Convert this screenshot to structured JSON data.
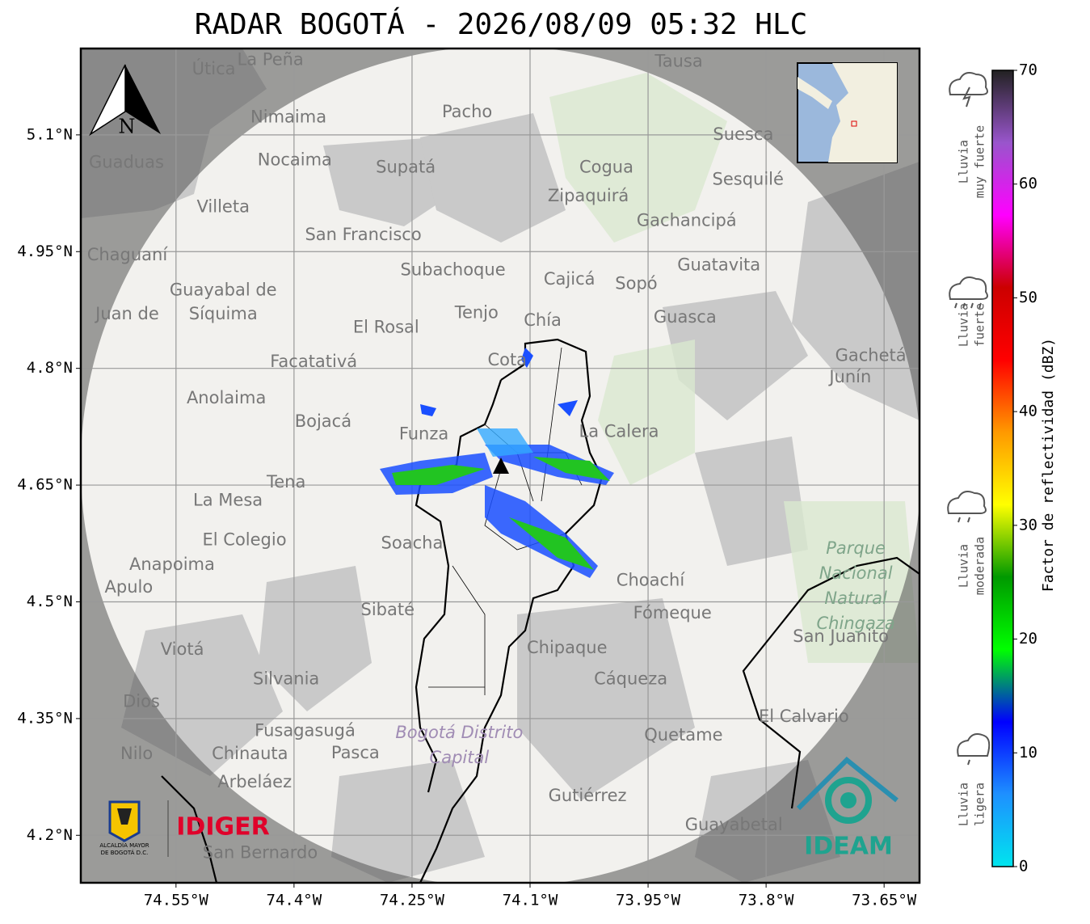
{
  "title": "RADAR BOGOTÁ - 2026/08/09 05:32 HLC",
  "map": {
    "xlim": [
      -74.671,
      -73.605
    ],
    "ylim": [
      4.139,
      5.211
    ],
    "lon_ticks": [
      {
        "value": -74.55,
        "label": "74.55°W"
      },
      {
        "value": -74.4,
        "label": "74.4°W"
      },
      {
        "value": -74.25,
        "label": "74.25°W"
      },
      {
        "value": -74.1,
        "label": "74.1°W"
      },
      {
        "value": -73.95,
        "label": "73.95°W"
      },
      {
        "value": -73.8,
        "label": "73.8°W"
      },
      {
        "value": -73.65,
        "label": "73.65°W"
      }
    ],
    "lat_ticks": [
      {
        "value": 5.1,
        "label": "5.1°N"
      },
      {
        "value": 4.95,
        "label": "4.95°N"
      },
      {
        "value": 4.8,
        "label": "4.8°N"
      },
      {
        "value": 4.65,
        "label": "4.65°N"
      },
      {
        "value": 4.5,
        "label": "4.5°N"
      },
      {
        "value": 4.35,
        "label": "4.35°N"
      },
      {
        "value": 4.2,
        "label": "4.2°N"
      }
    ],
    "grid": true,
    "north": "N",
    "places": [
      {
        "name": "Tausa",
        "lon": -73.911,
        "lat": 5.194
      },
      {
        "name": "La Peña",
        "lon": -74.43,
        "lat": 5.196
      },
      {
        "name": "Útica",
        "lon": -74.502,
        "lat": 5.184
      },
      {
        "name": "Pacho",
        "lon": -74.18,
        "lat": 5.129
      },
      {
        "name": "Nimaima",
        "lon": -74.407,
        "lat": 5.122
      },
      {
        "name": "Guaduas",
        "lon": -74.613,
        "lat": 5.064
      },
      {
        "name": "Nocaima",
        "lon": -74.399,
        "lat": 5.067
      },
      {
        "name": "Supatá",
        "lon": -74.258,
        "lat": 5.058
      },
      {
        "name": "Cogua",
        "lon": -74.003,
        "lat": 5.058
      },
      {
        "name": "Suesca",
        "lon": -73.829,
        "lat": 5.1
      },
      {
        "name": "Sesquilé",
        "lon": -73.823,
        "lat": 5.042
      },
      {
        "name": "Zipaquirá",
        "lon": -74.026,
        "lat": 5.021
      },
      {
        "name": "Villeta",
        "lon": -74.49,
        "lat": 5.007
      },
      {
        "name": "Gachancipá",
        "lon": -73.901,
        "lat": 4.989
      },
      {
        "name": "San Francisco",
        "lon": -74.312,
        "lat": 4.971
      },
      {
        "name": "Chaguaní",
        "lon": -74.612,
        "lat": 4.945
      },
      {
        "name": "Guatavita",
        "lon": -73.86,
        "lat": 4.932
      },
      {
        "name": "Subachoque",
        "lon": -74.198,
        "lat": 4.926
      },
      {
        "name": "Cajicá",
        "lon": -74.05,
        "lat": 4.914
      },
      {
        "name": "Sopó",
        "lon": -73.965,
        "lat": 4.908
      },
      {
        "name": "Guayabal de",
        "lon": -74.49,
        "lat": 4.9
      },
      {
        "name": "Síquima",
        "lon": -74.49,
        "lat": 4.869
      },
      {
        "name": "Juan de",
        "lon": -74.612,
        "lat": 4.869
      },
      {
        "name": "Tenjo",
        "lon": -74.168,
        "lat": 4.871
      },
      {
        "name": "Chía",
        "lon": -74.084,
        "lat": 4.861
      },
      {
        "name": "Guasca",
        "lon": -73.903,
        "lat": 4.865
      },
      {
        "name": "El Rosal",
        "lon": -74.283,
        "lat": 4.852
      },
      {
        "name": "Facatativá",
        "lon": -74.375,
        "lat": 4.808
      },
      {
        "name": "Cota",
        "lon": -74.129,
        "lat": 4.81
      },
      {
        "name": "Gachetá",
        "lon": -73.667,
        "lat": 4.816
      },
      {
        "name": "Junín",
        "lon": -73.693,
        "lat": 4.788
      },
      {
        "name": "Anolaima",
        "lon": -74.486,
        "lat": 4.761
      },
      {
        "name": "Bojacá",
        "lon": -74.363,
        "lat": 4.731
      },
      {
        "name": "Funza",
        "lon": -74.235,
        "lat": 4.715
      },
      {
        "name": "La Calera",
        "lon": -73.987,
        "lat": 4.718
      },
      {
        "name": "Tena",
        "lon": -74.41,
        "lat": 4.653
      },
      {
        "name": "La Mesa",
        "lon": -74.484,
        "lat": 4.63
      },
      {
        "name": "El Colegio",
        "lon": -74.463,
        "lat": 4.579
      },
      {
        "name": "Soacha",
        "lon": -74.25,
        "lat": 4.575
      },
      {
        "name": "Anapoima",
        "lon": -74.555,
        "lat": 4.547
      },
      {
        "name": "Apulo",
        "lon": -74.61,
        "lat": 4.518
      },
      {
        "name": "Choachí",
        "lon": -73.947,
        "lat": 4.527
      },
      {
        "name": "Fómeque",
        "lon": -73.919,
        "lat": 4.485
      },
      {
        "name": "Sibaté",
        "lon": -74.281,
        "lat": 4.489
      },
      {
        "name": "Chipaque",
        "lon": -74.053,
        "lat": 4.44
      },
      {
        "name": "Viotá",
        "lon": -74.542,
        "lat": 4.438
      },
      {
        "name": "San Juanito",
        "lon": -73.705,
        "lat": 4.455
      },
      {
        "name": "Silvania",
        "lon": -74.41,
        "lat": 4.4
      },
      {
        "name": "Cáqueza",
        "lon": -73.972,
        "lat": 4.4
      },
      {
        "name": "Dios",
        "lon": -74.594,
        "lat": 4.371
      },
      {
        "name": "El Calvario",
        "lon": -73.752,
        "lat": 4.352
      },
      {
        "name": "Fusagasugá",
        "lon": -74.386,
        "lat": 4.334
      },
      {
        "name": "Quetame",
        "lon": -73.905,
        "lat": 4.328
      },
      {
        "name": "Chinauta",
        "lon": -74.456,
        "lat": 4.304
      },
      {
        "name": "Pasca",
        "lon": -74.322,
        "lat": 4.305
      },
      {
        "name": "Nilo",
        "lon": -74.6,
        "lat": 4.304
      },
      {
        "name": "Arbeláez",
        "lon": -74.45,
        "lat": 4.268
      },
      {
        "name": "Gutiérrez",
        "lon": -74.027,
        "lat": 4.25
      },
      {
        "name": "Guayabetal",
        "lon": -73.841,
        "lat": 4.213
      },
      {
        "name": "San Bernardo",
        "lon": -74.443,
        "lat": 4.177
      }
    ],
    "areas": [
      {
        "lines": [
          "Parque",
          "Nacional",
          "Natural",
          "Chingaza"
        ],
        "lon": -73.686,
        "lat": 4.568,
        "color": "#7fa58a"
      },
      {
        "lines": [
          "Bogotá Distrito",
          "Capital"
        ],
        "lon": -74.19,
        "lat": 4.331,
        "color": "#a08cb4"
      }
    ]
  },
  "colorbar": {
    "label": "Factor de reflectividad (dBZ)",
    "lim": [
      0,
      70
    ],
    "ticks": [
      0,
      10,
      20,
      30,
      40,
      50,
      60,
      70
    ],
    "colors": [
      "#00e5ee",
      "#1e90ff",
      "#0000ff",
      "#00ff00",
      "#009900",
      "#ffff00",
      "#ff9900",
      "#ff0000",
      "#cc0000",
      "#ff00ff",
      "#9955cc",
      "#222222"
    ]
  },
  "rain_classes": [
    {
      "lines": [
        "Lluvia",
        "muy fuerte"
      ]
    },
    {
      "lines": [
        "Lluvia",
        "fuerte"
      ]
    },
    {
      "lines": [
        "Lluvia",
        "moderada"
      ]
    },
    {
      "lines": [
        "Lluvia",
        "ligera"
      ]
    }
  ],
  "logos": {
    "alcaldia": [
      "ALCALDÍA MAYOR",
      "DE BOGOTÁ D.C."
    ],
    "idiger": "IDIGER",
    "ideam": "IDEAM"
  }
}
